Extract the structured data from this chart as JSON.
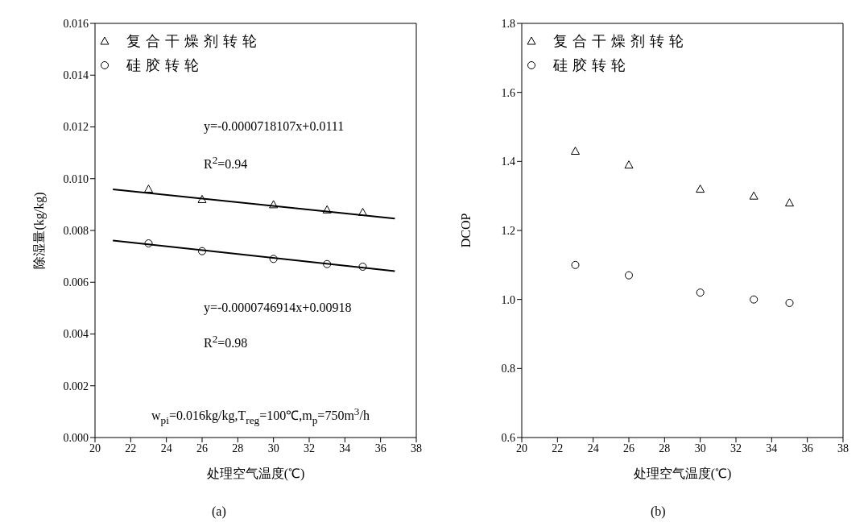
{
  "chart_data": [
    {
      "type": "scatter",
      "xlabel": "处理空气温度(℃)",
      "ylabel": "除湿量(kg/kg)",
      "xlim": [
        20,
        38
      ],
      "xticks": [
        20,
        22,
        24,
        26,
        28,
        30,
        32,
        34,
        36,
        38
      ],
      "ylim": [
        0,
        0.016
      ],
      "yticks": [
        {
          "value": 0,
          "label": "0.000"
        },
        0.002,
        0.004,
        0.006,
        0.008,
        {
          "value": 0.01,
          "label": "0.010"
        },
        0.012,
        0.014,
        0.016
      ],
      "legend": "top left",
      "series": [
        {
          "name": "复合干燥剂转轮",
          "color": "#000000",
          "marker": "triangle",
          "x": [
            23,
            26,
            30,
            33,
            35
          ],
          "values": [
            0.0096,
            0.0092,
            0.009,
            0.0088,
            0.0087
          ]
        },
        {
          "name": "硅胶转轮",
          "color": "#000000",
          "marker": "circle",
          "x": [
            23,
            26,
            30,
            33,
            35
          ],
          "values": [
            0.0075,
            0.0072,
            0.0069,
            0.0067,
            0.0066
          ]
        },
        {
          "type": "line",
          "color": "#000000",
          "marker": "none",
          "x": [
            21,
            36.8
          ],
          "values": [
            0.00959,
            0.00846
          ]
        },
        {
          "type": "line",
          "color": "#000000",
          "marker": "none",
          "x": [
            21,
            36.8
          ],
          "values": [
            0.00761,
            0.00643
          ]
        }
      ],
      "annotations": [
        "y=-0.0000718107x+0.0111",
        "R$^{2}$=0.94",
        "y=-0.0000746914x+0.00918",
        "R$^{2}$=0.98",
        "w$_{pi}$=0.016kg/kg,T$_{reg}$=100℃,m$_{p}$=750m$^{3}$/h",
        "(a)"
      ]
    },
    {
      "type": "scatter",
      "xlabel": "处理空气温度(℃)",
      "ylabel": "DCOP",
      "xlim": [
        20,
        38
      ],
      "xticks": [
        20,
        22,
        24,
        26,
        28,
        30,
        32,
        34,
        36,
        38
      ],
      "ylim": [
        0.6,
        1.8
      ],
      "yticks": [
        0.6,
        0.8,
        {
          "value": 1,
          "label": "1.0"
        },
        1.2,
        1.4,
        1.6,
        1.8
      ],
      "legend": "top left",
      "series": [
        {
          "name": "复合干燥剂转轮",
          "color": "#000000",
          "marker": "triangle",
          "x": [
            23,
            26,
            30,
            33,
            35
          ],
          "values": [
            1.43,
            1.39,
            1.32,
            1.3,
            1.28
          ]
        },
        {
          "name": "硅胶转轮",
          "color": "#000000",
          "marker": "circle",
          "x": [
            23,
            26,
            30,
            33,
            35
          ],
          "values": [
            1.1,
            1.07,
            1.02,
            1.0,
            0.99
          ]
        }
      ],
      "annotations": [
        "(b)"
      ]
    }
  ]
}
